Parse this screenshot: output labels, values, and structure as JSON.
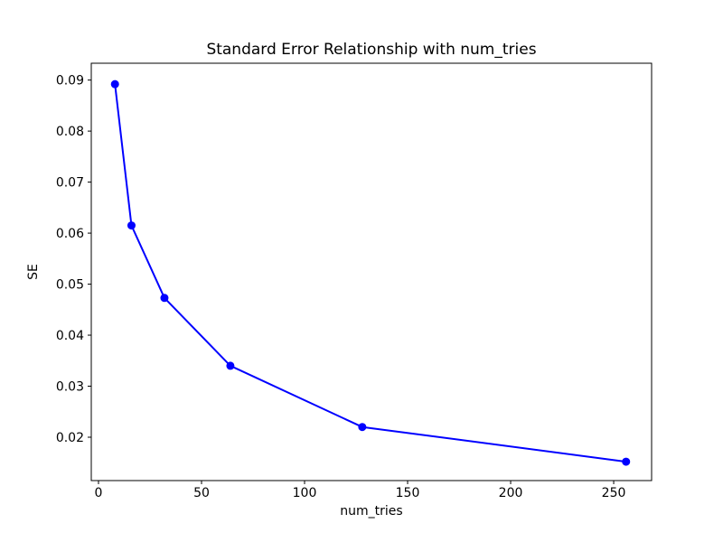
{
  "figure": {
    "background": "#ffffff"
  },
  "chart_data": {
    "type": "line",
    "title": "Standard Error Relationship with num_tries",
    "xlabel": "num_tries",
    "ylabel": "SE",
    "x": [
      8,
      16,
      32,
      64,
      128,
      256
    ],
    "y": [
      0.0892,
      0.0615,
      0.0473,
      0.034,
      0.022,
      0.0152
    ],
    "line_color": "#0000ff",
    "marker": "circle",
    "marker_size": 4.5,
    "line_width": 2,
    "xlim": [
      -3.5,
      268.4
    ],
    "ylim": [
      0.0115,
      0.0933
    ],
    "xticks": {
      "values": [
        0,
        50,
        100,
        150,
        200,
        250
      ],
      "labels": [
        "0",
        "50",
        "100",
        "150",
        "200",
        "250"
      ]
    },
    "yticks": {
      "values": [
        0.02,
        0.03,
        0.04,
        0.05,
        0.06,
        0.07,
        0.08,
        0.09
      ],
      "labels": [
        "0.02",
        "0.03",
        "0.04",
        "0.05",
        "0.06",
        "0.07",
        "0.08",
        "0.09"
      ]
    },
    "grid": false,
    "spine_color": "#000000",
    "tick_color": "#000000"
  }
}
